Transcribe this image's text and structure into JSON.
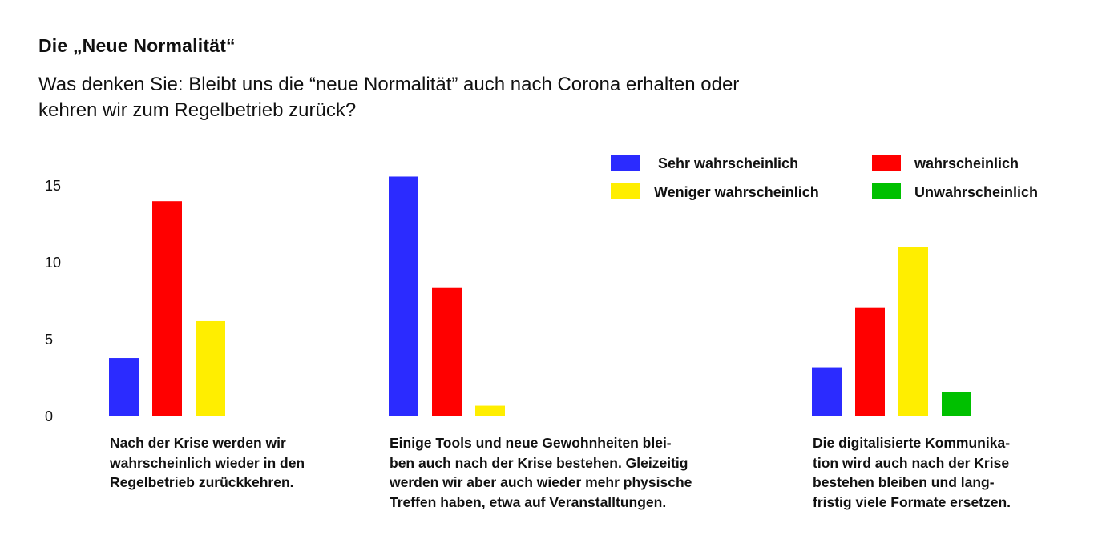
{
  "title": "Die „Neue Normalität“",
  "subtitle": "Was denken Sie: Bleibt uns die “neue Normalität” auch nach Corona erhalten oder kehren wir zum Regelbetrieb zurück?",
  "legend": [
    {
      "label": "Sehr wahrscheinlich",
      "color": "#2b2bff"
    },
    {
      "label": "wahrscheinlich",
      "color": "#ff0000"
    },
    {
      "label": "Weniger wahrscheinlich",
      "color": "#ffee00"
    },
    {
      "label": "Unwahrscheinlich",
      "color": "#00c000"
    }
  ],
  "captions": [
    "Nach der Krise werden wir\nwahrscheinlich wieder in den\nRegelbetrieb zurückkehren.",
    "Einige Tools und neue Gewohnheiten blei-\nben auch nach der Krise bestehen. Gleizeitig\nwerden wir aber auch wieder mehr physische\nTreffen haben, etwa auf Veranstalltungen.",
    "Die digitalisierte Kommunika-\ntion wird auch nach der Krise\nbestehen bleiben und lang-\nfristig viele Formate ersetzen."
  ],
  "chart_data": {
    "type": "bar",
    "title": "Die „Neue Normalität“",
    "subtitle": "Was denken Sie: Bleibt uns die “neue Normalität” auch nach Corona erhalten oder kehren wir zum Regelbetrieb zurück?",
    "categories": [
      "Nach der Krise werden wir wahrscheinlich wieder in den Regelbetrieb zurückkehren.",
      "Einige Tools und neue Gewohnheiten bleiben auch nach der Krise bestehen. Gleizeitig werden wir aber auch wieder mehr physische Treffen haben, etwa auf Veranstalltungen.",
      "Die digitalisierte Kommunikation wird auch nach der Krise bestehen bleiben und langfristig viele Formate ersetzen."
    ],
    "series": [
      {
        "name": "Sehr wahrscheinlich",
        "color": "#2b2bff",
        "values": [
          3.8,
          15.6,
          3.2
        ]
      },
      {
        "name": "wahrscheinlich",
        "color": "#ff0000",
        "values": [
          14.0,
          8.4,
          7.1
        ]
      },
      {
        "name": "Weniger wahrscheinlich",
        "color": "#ffee00",
        "values": [
          6.2,
          0.7,
          11.0
        ]
      },
      {
        "name": "Unwahrscheinlich",
        "color": "#00c000",
        "values": [
          0,
          0,
          1.6
        ]
      }
    ],
    "ylim": [
      0,
      16
    ],
    "yticks": [
      0,
      5,
      10,
      15
    ],
    "xlabel": "",
    "ylabel": "",
    "grid": false,
    "legend_position": "top-right"
  }
}
